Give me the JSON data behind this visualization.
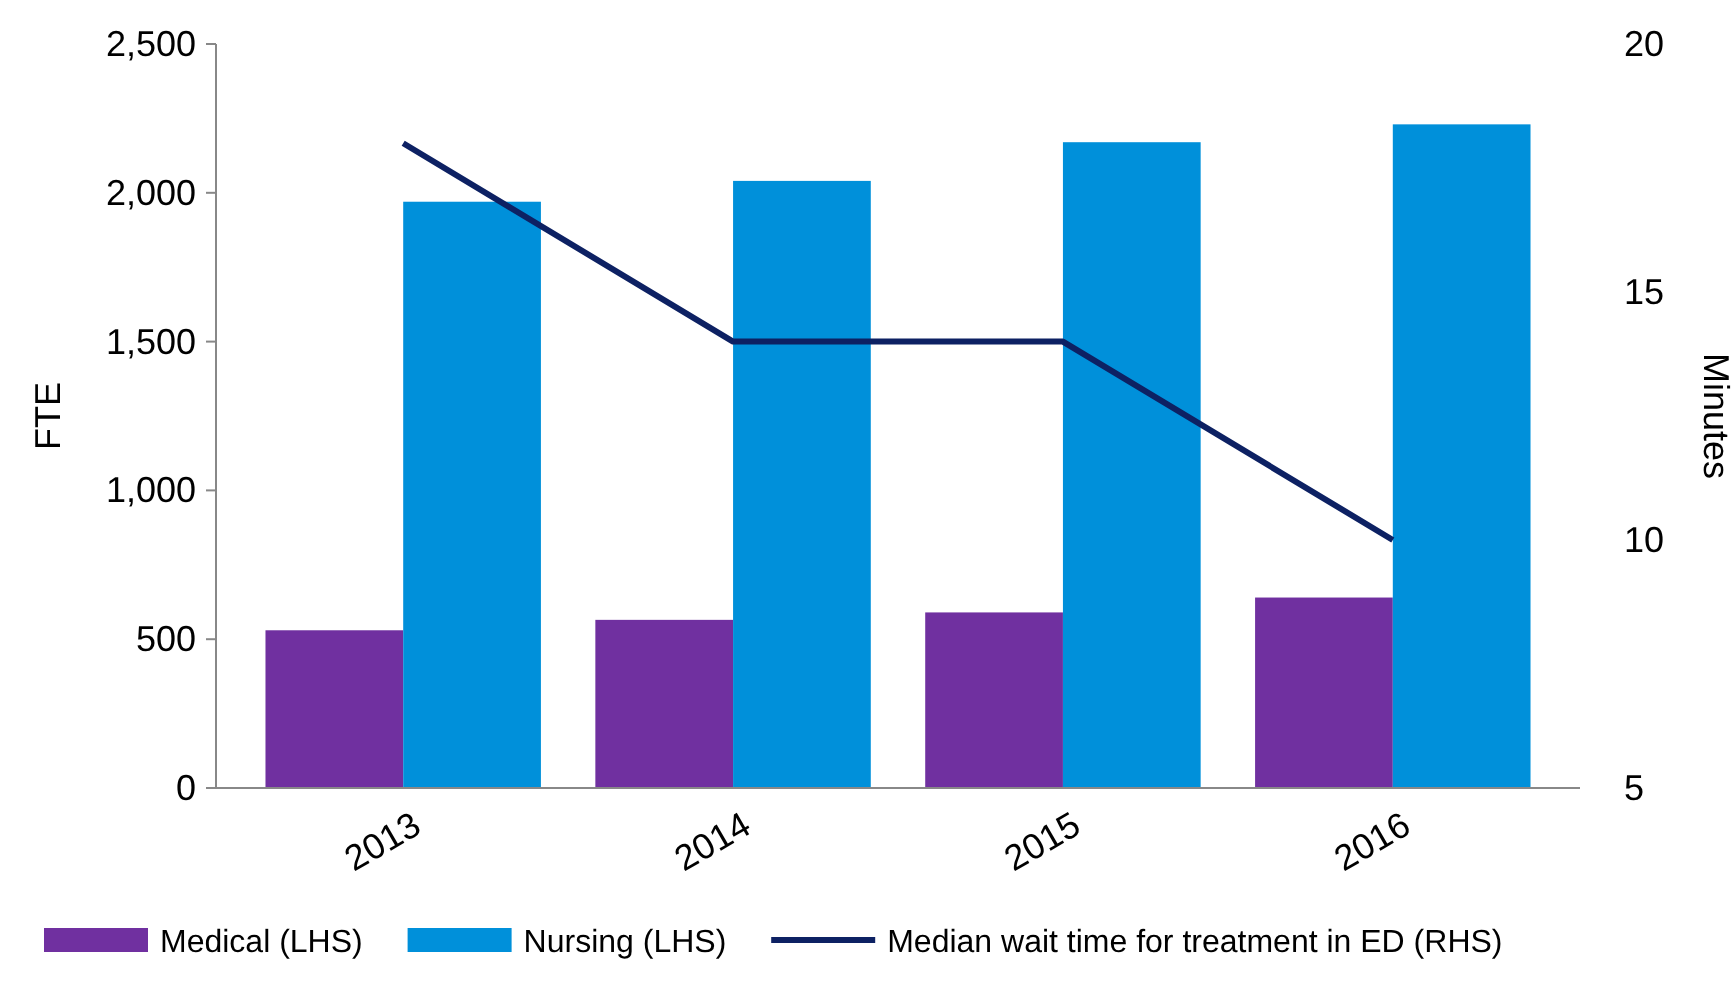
{
  "chart_data": {
    "type": "bar",
    "categories": [
      "2013",
      "2014",
      "2015",
      "2016"
    ],
    "series": [
      {
        "name": "Medical (LHS)",
        "color": "#7030a0",
        "values": [
          530,
          565,
          590,
          640
        ]
      },
      {
        "name": "Nursing (LHS)",
        "color": "#0090da",
        "values": [
          1970,
          2040,
          2170,
          2230
        ]
      },
      {
        "name": "Median wait time for treatment in ED (RHS)",
        "type": "line",
        "axis": "y2",
        "color": "#0d2163",
        "values": [
          18,
          14,
          14,
          10
        ]
      }
    ],
    "ylabel": "FTE",
    "y2label": "Minutes",
    "ylim": [
      0,
      2500
    ],
    "yticks": [
      0,
      500,
      {
        "value": 1000,
        "label": "1,000"
      },
      {
        "value": 1500,
        "label": "1,500"
      },
      {
        "value": 2000,
        "label": "2,000"
      },
      {
        "value": 2500,
        "label": "2,500"
      }
    ],
    "y2lim": [
      5,
      20
    ],
    "y2ticks": [
      5,
      10,
      15,
      20
    ],
    "legend": "bottom",
    "grid": false,
    "marker": "none",
    "line_style": "solid"
  }
}
